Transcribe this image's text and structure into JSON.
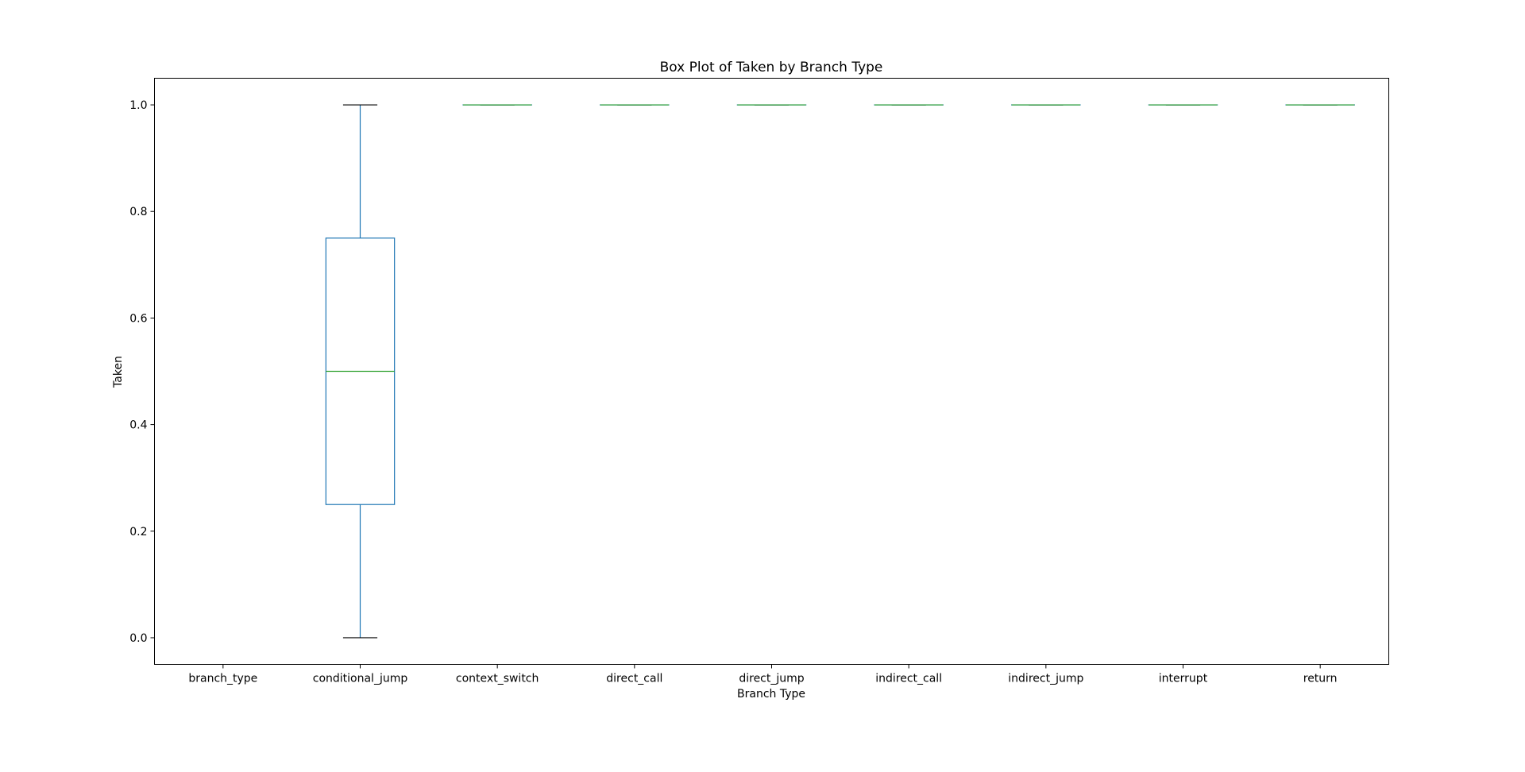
{
  "chart_data": {
    "type": "box",
    "title": "Box Plot of Taken by Branch Type",
    "xlabel": "Branch Type",
    "ylabel": "Taken",
    "ylim": [
      -0.05,
      1.05
    ],
    "yticks": [
      "0.0",
      "0.2",
      "0.4",
      "0.6",
      "0.8",
      "1.0"
    ],
    "grid": false,
    "categories": [
      "branch_type",
      "conditional_jump",
      "context_switch",
      "direct_call",
      "direct_jump",
      "indirect_call",
      "indirect_jump",
      "interrupt",
      "return"
    ],
    "boxes": [
      null,
      {
        "whisker_low": 0.0,
        "q1": 0.25,
        "median": 0.5,
        "q3": 0.75,
        "whisker_high": 1.0
      },
      {
        "whisker_low": 1.0,
        "q1": 1.0,
        "median": 1.0,
        "q3": 1.0,
        "whisker_high": 1.0
      },
      {
        "whisker_low": 1.0,
        "q1": 1.0,
        "median": 1.0,
        "q3": 1.0,
        "whisker_high": 1.0
      },
      {
        "whisker_low": 1.0,
        "q1": 1.0,
        "median": 1.0,
        "q3": 1.0,
        "whisker_high": 1.0
      },
      {
        "whisker_low": 1.0,
        "q1": 1.0,
        "median": 1.0,
        "q3": 1.0,
        "whisker_high": 1.0
      },
      {
        "whisker_low": 1.0,
        "q1": 1.0,
        "median": 1.0,
        "q3": 1.0,
        "whisker_high": 1.0
      },
      {
        "whisker_low": 1.0,
        "q1": 1.0,
        "median": 1.0,
        "q3": 1.0,
        "whisker_high": 1.0
      },
      {
        "whisker_low": 1.0,
        "q1": 1.0,
        "median": 1.0,
        "q3": 1.0,
        "whisker_high": 1.0
      }
    ],
    "colors": {
      "box": "#1f77b4",
      "median": "#2ca02c",
      "cap": "#000000"
    }
  }
}
